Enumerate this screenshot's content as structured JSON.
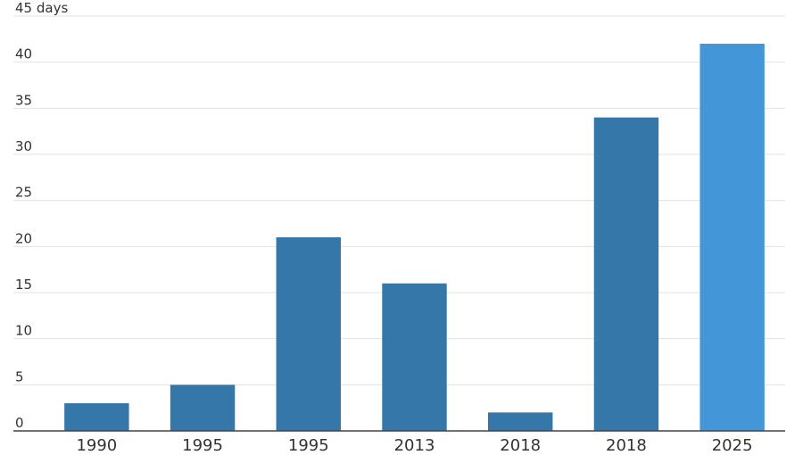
{
  "chart_data": {
    "type": "bar",
    "categories": [
      "1990",
      "1995",
      "1995",
      "2013",
      "2018",
      "2018",
      "2025"
    ],
    "values": [
      3,
      5,
      21,
      16,
      2,
      34,
      42
    ],
    "colors": [
      "#3677aa",
      "#3677aa",
      "#3677aa",
      "#3677aa",
      "#3677aa",
      "#3677aa",
      "#4396d8"
    ],
    "ylim": [
      0,
      45
    ],
    "yticks": [
      0,
      5,
      10,
      15,
      20,
      25,
      30,
      35,
      40,
      {
        "value": 45,
        "label": "45 days"
      }
    ],
    "grid": true
  }
}
